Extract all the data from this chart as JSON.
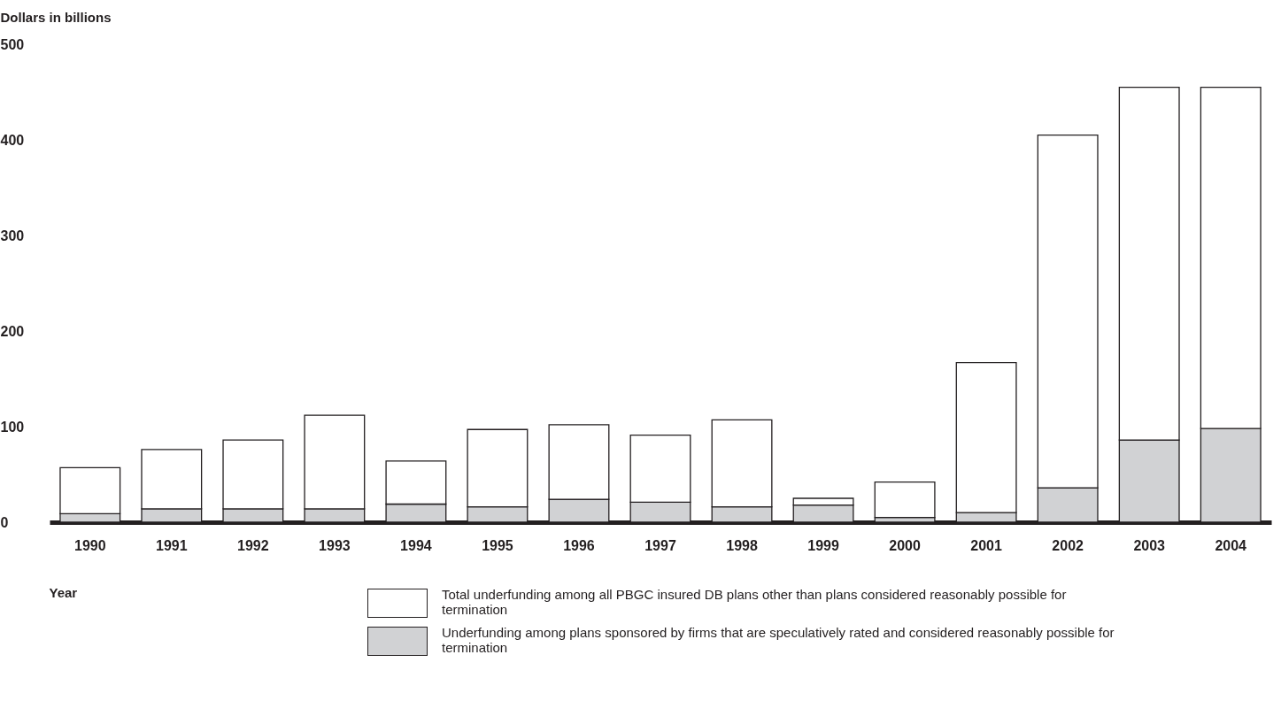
{
  "chart_data": {
    "type": "bar",
    "stacked": true,
    "xlabel": "Year",
    "ylabel": "Dollars in billions",
    "categories": [
      "1990",
      "1991",
      "1992",
      "1993",
      "1994",
      "1995",
      "1996",
      "1997",
      "1998",
      "1999",
      "2000",
      "2001",
      "2002",
      "2003",
      "2004"
    ],
    "series": [
      {
        "name": "Underfunding among plans sponsored by firms that are speculatively rated and considered reasonably possible for termination",
        "color": "#d1d2d4",
        "values": [
          9,
          14,
          14,
          14,
          19,
          16,
          24,
          21,
          16,
          18,
          5,
          10,
          36,
          86,
          98
        ]
      },
      {
        "name": "Total underfunding among all PBGC insured DB plans other than plans considered reasonably possible for termination",
        "color": "#ffffff",
        "values": [
          48,
          62,
          72,
          98,
          45,
          81,
          78,
          70,
          91,
          7,
          37,
          157,
          369,
          369,
          357
        ]
      }
    ],
    "ylim": [
      0,
      500
    ],
    "yticks": [
      0,
      100,
      200,
      300,
      400,
      500
    ],
    "legend": "bottom"
  }
}
